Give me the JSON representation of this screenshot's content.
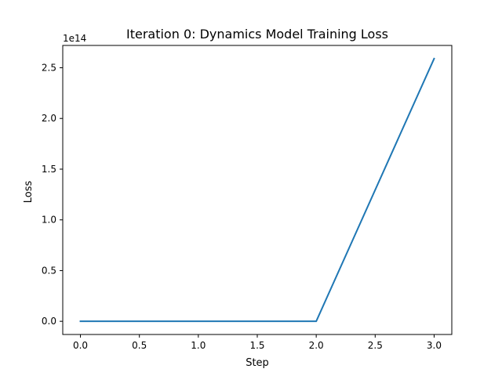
{
  "chart_data": {
    "type": "line",
    "title": "Iteration 0: Dynamics Model Training Loss",
    "xlabel": "Step",
    "ylabel": "Loss",
    "y_offset_label": "1e14",
    "xlim": [
      -0.15,
      3.15
    ],
    "ylim": [
      -0.13,
      2.72
    ],
    "x_ticks": [
      0.0,
      0.5,
      1.0,
      1.5,
      2.0,
      2.5,
      3.0
    ],
    "x_tick_labels": [
      "0.0",
      "0.5",
      "1.0",
      "1.5",
      "2.0",
      "2.5",
      "3.0"
    ],
    "y_ticks": [
      0.0,
      0.5,
      1.0,
      1.5,
      2.0,
      2.5
    ],
    "y_tick_labels": [
      "0.0",
      "0.5",
      "1.0",
      "1.5",
      "2.0",
      "2.5"
    ],
    "grid": false,
    "series": [
      {
        "name": "loss",
        "color": "#1f77b4",
        "x": [
          0,
          1,
          2,
          3
        ],
        "y": [
          0.0,
          0.0,
          0.0,
          2.59
        ]
      }
    ]
  }
}
